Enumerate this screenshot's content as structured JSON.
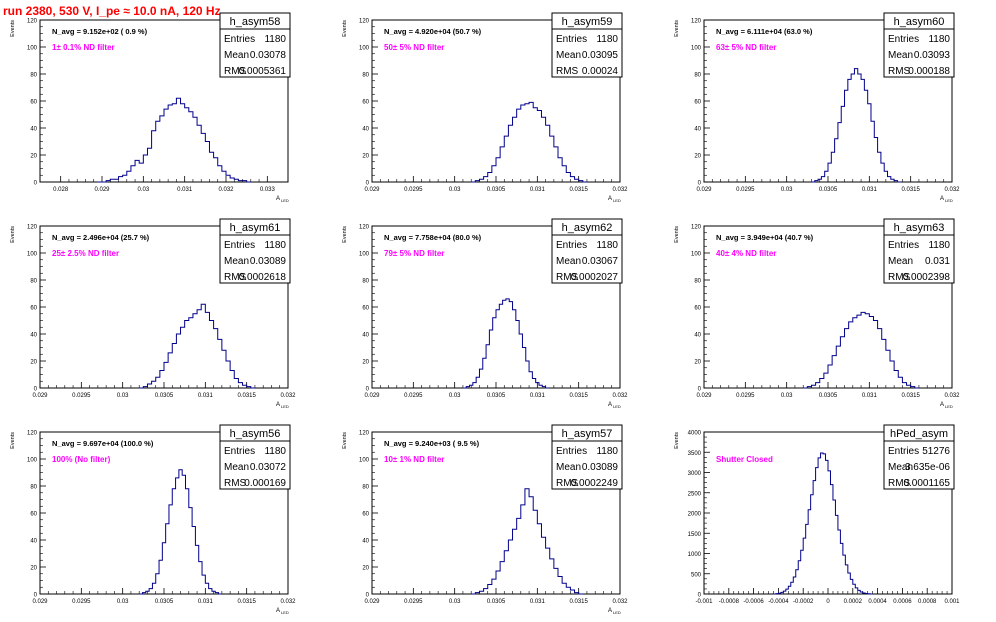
{
  "page_title": "run 2380,   530 V, I_pe ≈ 10.0 nA, 120 Hz",
  "colors": {
    "histogram": "#00008b",
    "axis": "#000000",
    "title": "#ff0000",
    "annotation": "#ff00ff"
  },
  "chart_data": [
    {
      "type": "histogram",
      "name": "h_asym58",
      "stats": {
        "Entries": "1180",
        "Mean": "0.03078",
        "RMS": "0.0005361"
      },
      "navg": "N_avg = 9.152e+02 ( 0.9 %)",
      "filter_label": "1± 0.1% ND filter",
      "ylabel": "Events",
      "xlabel": "A",
      "xlim": [
        0.0275,
        0.0335
      ],
      "ylim": [
        0,
        120
      ],
      "xticks": [
        {
          "v": 0.028,
          "t": "0.028"
        },
        {
          "v": 0.029,
          "t": "0.029"
        },
        {
          "v": 0.03,
          "t": "0.03"
        },
        {
          "v": 0.031,
          "t": "0.031"
        },
        {
          "v": 0.032,
          "t": "0.032"
        },
        {
          "v": 0.033,
          "t": "0.033"
        }
      ],
      "yticks": [
        0,
        20,
        40,
        60,
        80,
        100,
        120
      ],
      "bin_width": 0.0001,
      "x": 0.0289,
      "values": [
        0,
        0,
        1,
        2,
        2,
        4,
        5,
        8,
        12,
        16,
        14,
        20,
        25,
        38,
        45,
        49,
        54,
        57,
        58,
        62,
        58,
        55,
        52,
        48,
        42,
        36,
        30,
        22,
        18,
        12,
        8,
        5,
        3,
        2,
        1,
        1,
        0
      ]
    },
    {
      "type": "histogram",
      "name": "h_asym59",
      "stats": {
        "Entries": "1180",
        "Mean": "0.03095",
        "RMS": "0.00024"
      },
      "navg": "N_avg = 4.920e+04 (50.7 %)",
      "filter_label": "50± 5% ND filter",
      "ylabel": "Events",
      "xlabel": "A",
      "xlim": [
        0.029,
        0.032
      ],
      "ylim": [
        0,
        120
      ],
      "xticks": [
        {
          "v": 0.029,
          "t": "0.029"
        },
        {
          "v": 0.0295,
          "t": "0.0295"
        },
        {
          "v": 0.03,
          "t": "0.03"
        },
        {
          "v": 0.0305,
          "t": "0.0305"
        },
        {
          "v": 0.031,
          "t": "0.031"
        },
        {
          "v": 0.0315,
          "t": "0.0315"
        },
        {
          "v": 0.032,
          "t": "0.032"
        }
      ],
      "yticks": [
        0,
        20,
        40,
        60,
        80,
        100,
        120
      ],
      "bin_width": 5e-05,
      "x": 0.0302,
      "values": [
        0,
        1,
        2,
        4,
        7,
        12,
        18,
        26,
        34,
        42,
        48,
        54,
        57,
        58,
        59,
        55,
        53,
        48,
        42,
        34,
        26,
        18,
        12,
        7,
        4,
        2,
        1,
        0
      ]
    },
    {
      "type": "histogram",
      "name": "h_asym60",
      "stats": {
        "Entries": "1180",
        "Mean": "0.03093",
        "RMS": "0.000188"
      },
      "navg": "N_avg = 6.111e+04 (63.0 %)",
      "filter_label": "63± 5% ND filter",
      "ylabel": "Events",
      "xlabel": "A",
      "xlim": [
        0.029,
        0.032
      ],
      "ylim": [
        0,
        120
      ],
      "xticks": [
        {
          "v": 0.029,
          "t": "0.029"
        },
        {
          "v": 0.0295,
          "t": "0.0295"
        },
        {
          "v": 0.03,
          "t": "0.03"
        },
        {
          "v": 0.0305,
          "t": "0.0305"
        },
        {
          "v": 0.031,
          "t": "0.031"
        },
        {
          "v": 0.0315,
          "t": "0.0315"
        },
        {
          "v": 0.032,
          "t": "0.032"
        }
      ],
      "yticks": [
        0,
        20,
        40,
        60,
        80,
        100,
        120
      ],
      "bin_width": 4e-05,
      "x": 0.0303,
      "values": [
        0,
        1,
        2,
        4,
        8,
        14,
        22,
        32,
        44,
        56,
        68,
        76,
        80,
        84,
        80,
        76,
        68,
        58,
        45,
        33,
        22,
        14,
        8,
        4,
        2,
        1,
        0
      ]
    },
    {
      "type": "histogram",
      "name": "h_asym61",
      "stats": {
        "Entries": "1180",
        "Mean": "0.03089",
        "RMS": "0.0002618"
      },
      "navg": "N_avg = 2.496e+04 (25.7 %)",
      "filter_label": "25± 2.5% ND filter",
      "ylabel": "Events",
      "xlabel": "A",
      "xlim": [
        0.029,
        0.032
      ],
      "ylim": [
        0,
        120
      ],
      "xticks": [
        {
          "v": 0.029,
          "t": "0.029"
        },
        {
          "v": 0.0295,
          "t": "0.0295"
        },
        {
          "v": 0.03,
          "t": "0.03"
        },
        {
          "v": 0.0305,
          "t": "0.0305"
        },
        {
          "v": 0.031,
          "t": "0.031"
        },
        {
          "v": 0.0315,
          "t": "0.0315"
        },
        {
          "v": 0.032,
          "t": "0.032"
        }
      ],
      "yticks": [
        0,
        20,
        40,
        60,
        80,
        100,
        120
      ],
      "bin_width": 5e-05,
      "x": 0.0302,
      "values": [
        0,
        1,
        3,
        5,
        8,
        13,
        19,
        26,
        33,
        40,
        45,
        50,
        52,
        55,
        58,
        62,
        56,
        50,
        44,
        36,
        28,
        20,
        13,
        7,
        4,
        2,
        1,
        0
      ]
    },
    {
      "type": "histogram",
      "name": "h_asym62",
      "stats": {
        "Entries": "1180",
        "Mean": "0.03067",
        "RMS": "0.0002027"
      },
      "navg": "N_avg = 7.758e+04 (80.0 %)",
      "filter_label": "79± 5% ND filter",
      "ylabel": "Events",
      "xlabel": "A",
      "xlim": [
        0.029,
        0.032
      ],
      "ylim": [
        0,
        120
      ],
      "xticks": [
        {
          "v": 0.029,
          "t": "0.029"
        },
        {
          "v": 0.0295,
          "t": "0.0295"
        },
        {
          "v": 0.03,
          "t": "0.03"
        },
        {
          "v": 0.0305,
          "t": "0.0305"
        },
        {
          "v": 0.031,
          "t": "0.031"
        },
        {
          "v": 0.0315,
          "t": "0.0315"
        },
        {
          "v": 0.032,
          "t": "0.032"
        }
      ],
      "yticks": [
        0,
        20,
        40,
        60,
        80,
        100,
        120
      ],
      "bin_width": 4e-05,
      "x": 0.0301,
      "values": [
        0,
        1,
        2,
        4,
        8,
        14,
        22,
        32,
        43,
        52,
        58,
        62,
        65,
        66,
        64,
        58,
        50,
        40,
        30,
        20,
        12,
        7,
        4,
        2,
        1,
        0
      ]
    },
    {
      "type": "histogram",
      "name": "h_asym63",
      "stats": {
        "Entries": "1180",
        "Mean": "0.031",
        "RMS": "0.0002398"
      },
      "navg": "N_avg = 3.949e+04 (40.7 %)",
      "filter_label": "40± 4% ND filter",
      "ylabel": "Events",
      "xlabel": "A",
      "xlim": [
        0.029,
        0.032
      ],
      "ylim": [
        0,
        120
      ],
      "xticks": [
        {
          "v": 0.029,
          "t": "0.029"
        },
        {
          "v": 0.0295,
          "t": "0.0295"
        },
        {
          "v": 0.03,
          "t": "0.03"
        },
        {
          "v": 0.0305,
          "t": "0.0305"
        },
        {
          "v": 0.031,
          "t": "0.031"
        },
        {
          "v": 0.0315,
          "t": "0.0315"
        },
        {
          "v": 0.032,
          "t": "0.032"
        }
      ],
      "yticks": [
        0,
        20,
        40,
        60,
        80,
        100,
        120
      ],
      "bin_width": 5e-05,
      "x": 0.0302,
      "values": [
        0,
        1,
        2,
        4,
        7,
        11,
        17,
        24,
        31,
        38,
        44,
        49,
        52,
        54,
        56,
        55,
        53,
        50,
        44,
        36,
        28,
        20,
        13,
        8,
        4,
        2,
        1,
        0
      ]
    },
    {
      "type": "histogram",
      "name": "h_asym56",
      "stats": {
        "Entries": "1180",
        "Mean": "0.03072",
        "RMS": "0.000169"
      },
      "navg": "N_avg = 9.697e+04 (100.0 %)",
      "filter_label": "100% (No filter)",
      "ylabel": "Events",
      "xlabel": "A",
      "xlim": [
        0.029,
        0.032
      ],
      "ylim": [
        0,
        120
      ],
      "xticks": [
        {
          "v": 0.029,
          "t": "0.029"
        },
        {
          "v": 0.0295,
          "t": "0.0295"
        },
        {
          "v": 0.03,
          "t": "0.03"
        },
        {
          "v": 0.0305,
          "t": "0.0305"
        },
        {
          "v": 0.031,
          "t": "0.031"
        },
        {
          "v": 0.0315,
          "t": "0.0315"
        },
        {
          "v": 0.032,
          "t": "0.032"
        }
      ],
      "yticks": [
        0,
        20,
        40,
        60,
        80,
        100,
        120
      ],
      "bin_width": 4e-05,
      "x": 0.0302,
      "values": [
        0,
        1,
        2,
        4,
        8,
        15,
        25,
        38,
        52,
        66,
        78,
        86,
        92,
        88,
        78,
        64,
        50,
        36,
        24,
        14,
        8,
        4,
        2,
        1,
        0
      ]
    },
    {
      "type": "histogram",
      "name": "h_asym57",
      "stats": {
        "Entries": "1180",
        "Mean": "0.03089",
        "RMS": "0.0002249"
      },
      "navg": "N_avg = 9.240e+03 ( 9.5 %)",
      "filter_label": "10± 1% ND filter",
      "ylabel": "Events",
      "xlabel": "A",
      "xlim": [
        0.029,
        0.032
      ],
      "ylim": [
        0,
        120
      ],
      "xticks": [
        {
          "v": 0.029,
          "t": "0.029"
        },
        {
          "v": 0.0295,
          "t": "0.0295"
        },
        {
          "v": 0.03,
          "t": "0.03"
        },
        {
          "v": 0.0305,
          "t": "0.0305"
        },
        {
          "v": 0.031,
          "t": "0.031"
        },
        {
          "v": 0.0315,
          "t": "0.0315"
        },
        {
          "v": 0.032,
          "t": "0.032"
        }
      ],
      "yticks": [
        0,
        20,
        40,
        60,
        80,
        100,
        120
      ],
      "bin_width": 5e-05,
      "x": 0.0302,
      "values": [
        0,
        1,
        2,
        4,
        7,
        11,
        17,
        24,
        32,
        40,
        48,
        56,
        66,
        78,
        72,
        62,
        52,
        42,
        34,
        26,
        19,
        13,
        8,
        5,
        3,
        1,
        0
      ]
    },
    {
      "type": "histogram",
      "name": "hPed_asym",
      "stats": {
        "Entries": "51276",
        "Mean": "3.635e-06",
        "RMS": "0.0001165"
      },
      "navg": "",
      "filter_label": "Shutter Closed",
      "ylabel": "Events",
      "xlabel": "",
      "xlim": [
        -0.001,
        0.001
      ],
      "ylim": [
        0,
        4000
      ],
      "xticks": [
        {
          "v": -0.001,
          "t": "-0.001"
        },
        {
          "v": -0.0008,
          "t": "-0.0008"
        },
        {
          "v": -0.0006,
          "t": "-0.0006"
        },
        {
          "v": -0.0004,
          "t": "-0.0004"
        },
        {
          "v": -0.0002,
          "t": "-0.0002"
        },
        {
          "v": 0,
          "t": "0"
        },
        {
          "v": 0.0002,
          "t": "0.0002"
        },
        {
          "v": 0.0004,
          "t": "0.0004"
        },
        {
          "v": 0.0006,
          "t": "0.0006"
        },
        {
          "v": 0.0008,
          "t": "0.0008"
        },
        {
          "v": 0.001,
          "t": "0.001"
        }
      ],
      "yticks": [
        0,
        500,
        1000,
        1500,
        2000,
        2500,
        3000,
        3500,
        4000
      ],
      "bin_width": 2e-05,
      "x": -0.00044,
      "values": [
        0,
        10,
        20,
        40,
        70,
        120,
        190,
        290,
        420,
        600,
        820,
        1080,
        1380,
        1720,
        2080,
        2450,
        2800,
        3120,
        3360,
        3480,
        3460,
        3300,
        3040,
        2700,
        2320,
        1940,
        1580,
        1250,
        960,
        720,
        520,
        360,
        240,
        150,
        90,
        50,
        25,
        12,
        5,
        0
      ]
    }
  ]
}
